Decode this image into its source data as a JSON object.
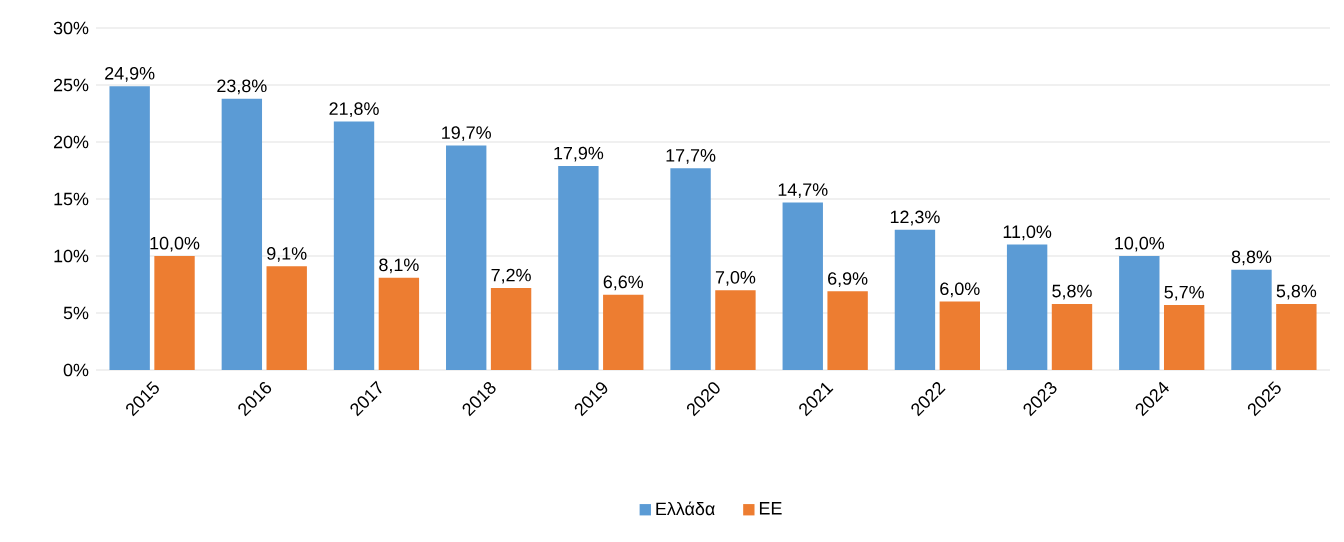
{
  "chart_data": {
    "type": "bar",
    "categories": [
      "2015",
      "2016",
      "2017",
      "2018",
      "2019",
      "2020",
      "2021",
      "2022",
      "2023",
      "2024",
      "2025"
    ],
    "series": [
      {
        "name": "Ελλάδα",
        "color": "#5b9bd5",
        "values": [
          24.9,
          23.8,
          21.8,
          19.7,
          17.9,
          17.7,
          14.7,
          12.3,
          11.0,
          10.0,
          8.8
        ],
        "value_labels": [
          "24,9%",
          "23,8%",
          "21,8%",
          "19,7%",
          "17,9%",
          "17,7%",
          "14,7%",
          "12,3%",
          "11,0%",
          "10,0%",
          "8,8%"
        ]
      },
      {
        "name": "ΕΕ",
        "color": "#ed7d31",
        "values": [
          10.0,
          9.1,
          8.1,
          7.2,
          6.6,
          7.0,
          6.9,
          6.0,
          5.8,
          5.7,
          5.8
        ],
        "value_labels": [
          "10,0%",
          "9,1%",
          "8,1%",
          "7,2%",
          "6,6%",
          "7,0%",
          "6,9%",
          "6,0%",
          "5,8%",
          "5,7%",
          "5,8%"
        ]
      }
    ],
    "ylim": [
      0,
      30
    ],
    "yticks": [
      {
        "value": 0,
        "label": "0%"
      },
      {
        "value": 5,
        "label": "5%"
      },
      {
        "value": 10,
        "label": "10%"
      },
      {
        "value": 15,
        "label": "15%"
      },
      {
        "value": 20,
        "label": "20%"
      },
      {
        "value": 25,
        "label": "25%"
      },
      {
        "value": 30,
        "label": "30%"
      }
    ],
    "grid": "y",
    "legend": "bottom"
  }
}
